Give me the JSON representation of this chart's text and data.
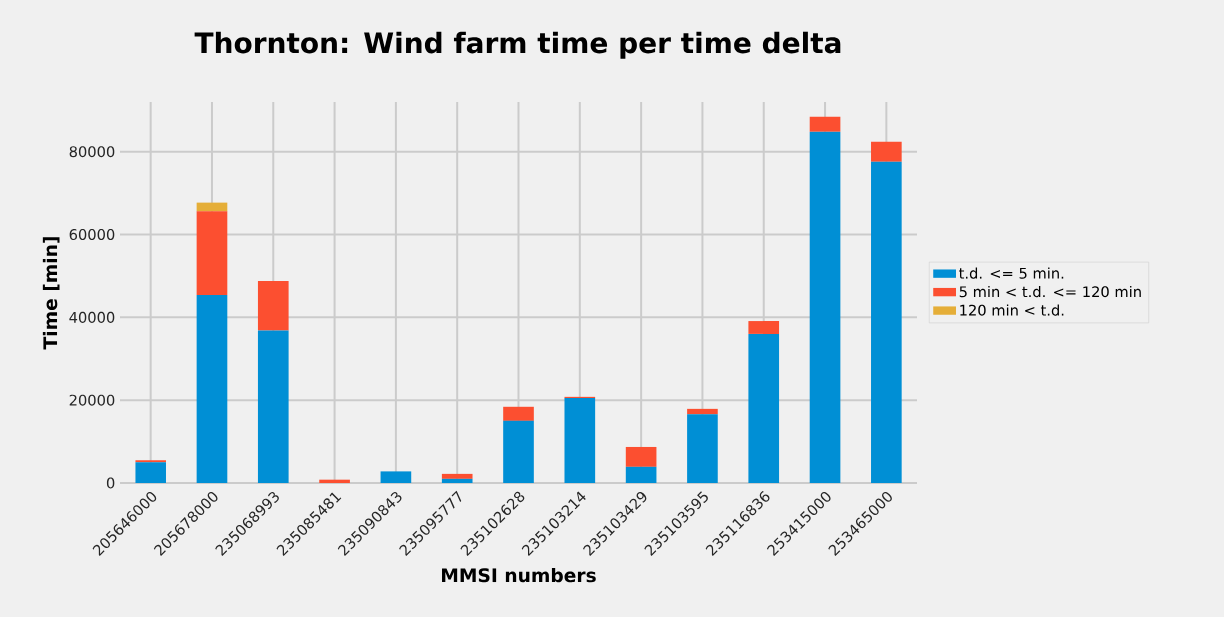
{
  "chart_data": {
    "type": "bar",
    "title": "Thornton: Wind farm time per time delta",
    "xlabel": "MMSI numbers",
    "ylabel": "Time [min]",
    "categories": [
      "205646000",
      "205678000",
      "235068993",
      "235085481",
      "235090843",
      "235095777",
      "235102628",
      "235103214",
      "235103429",
      "235103595",
      "235116836",
      "253415000",
      "253465000"
    ],
    "stacked": true,
    "series": [
      {
        "name": "t.d. <= 5 min.",
        "color": "#008fd5",
        "values": [
          5000,
          45400,
          36800,
          0,
          2800,
          1000,
          15000,
          20500,
          3900,
          16600,
          36000,
          84800,
          77600
        ]
      },
      {
        "name": "5 min < t.d. <= 120 min",
        "color": "#fc4f30",
        "values": [
          500,
          20200,
          12000,
          800,
          0,
          1200,
          3400,
          300,
          4800,
          1300,
          3100,
          3700,
          4800
        ]
      },
      {
        "name": "120 min < t.d.",
        "color": "#e5ae38",
        "values": [
          0,
          2100,
          0,
          0,
          0,
          0,
          0,
          0,
          0,
          0,
          0,
          0,
          0
        ]
      }
    ],
    "ylim": [
      0,
      92000
    ],
    "yticks": [
      0,
      20000,
      40000,
      60000,
      80000
    ],
    "grid": true,
    "legend": "right"
  }
}
